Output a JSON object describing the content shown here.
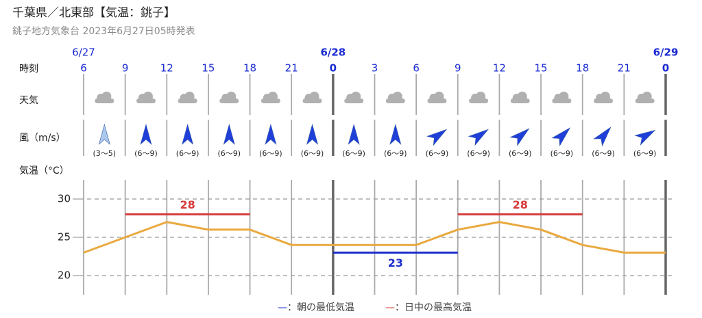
{
  "header": {
    "title": "千葉県／北東部【気温：銚子】",
    "subtitle": "銚子地方気象台 2023年6月27日05時発表"
  },
  "rows": {
    "time": "時刻",
    "weather": "天気",
    "wind": "風（m/s）"
  },
  "wind": {
    "speeds": [
      "(3〜5)",
      "(6〜9)",
      "(6〜9)",
      "(6〜9)",
      "(6〜9)",
      "(6〜9)",
      "(6〜9)",
      "(6〜9)",
      "(6〜9)",
      "(6〜9)",
      "(6〜9)",
      "(6〜9)",
      "(6〜9)",
      "(6〜9)"
    ],
    "directions": [
      0,
      0,
      0,
      0,
      0,
      0,
      0,
      0,
      55,
      55,
      50,
      45,
      40,
      60
    ],
    "colors": [
      "#a9c8ec",
      "#1f3fd8",
      "#1f3fd8",
      "#1f3fd8",
      "#1f3fd8",
      "#1f3fd8",
      "#1f3fd8",
      "#1f3fd8",
      "#1f3fd8",
      "#1f3fd8",
      "#1f3fd8",
      "#1f3fd8",
      "#1f3fd8",
      "#1f3fd8"
    ]
  },
  "chart_data": {
    "type": "line",
    "y_label": "気温（°C）",
    "categories": [
      "6",
      "9",
      "12",
      "15",
      "18",
      "21",
      "0",
      "3",
      "6",
      "9",
      "12",
      "15",
      "18",
      "21",
      "0"
    ],
    "dates": [
      "6/27",
      null,
      null,
      null,
      null,
      null,
      "6/28",
      null,
      null,
      null,
      null,
      null,
      null,
      null,
      "6/29"
    ],
    "ylim": [
      17.5,
      32.5
    ],
    "yticks": [
      20,
      25,
      30
    ],
    "grid": true,
    "series": [
      {
        "color": "#e9a940",
        "values": [
          23,
          25,
          27,
          26,
          26,
          24,
          24,
          24,
          24,
          26,
          27,
          26,
          24,
          23,
          23
        ]
      },
      {
        "name": "—：朝の最低気温",
        "color": "#1f2fcc",
        "labels": "below",
        "values": [
          null,
          null,
          null,
          null,
          null,
          null,
          23,
          23,
          23,
          23,
          null,
          null,
          null,
          null,
          null
        ]
      },
      {
        "name": "—：日中の最高気温",
        "color": "#d63a3a",
        "labels": "above",
        "values": [
          null,
          28,
          28,
          28,
          28,
          null,
          null,
          null,
          null,
          28,
          28,
          28,
          28,
          null,
          null
        ]
      }
    ]
  }
}
